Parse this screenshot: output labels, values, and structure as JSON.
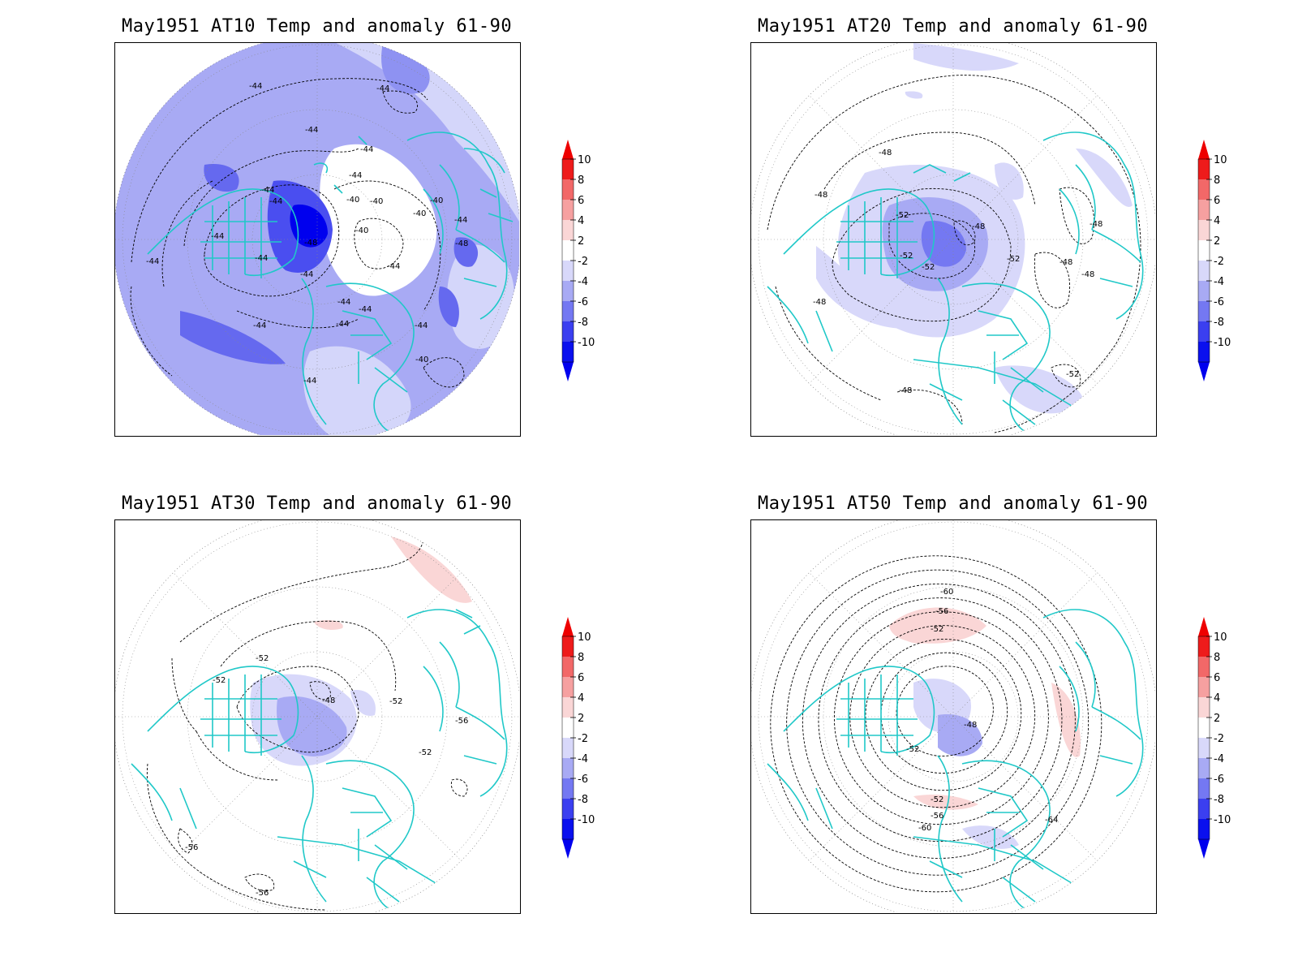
{
  "panels": [
    {
      "title": "May1951 AT10 Temp and anomaly 61-90",
      "background_color": "#a8aaf4",
      "contour_labels": [
        "-44",
        "-44",
        "-44",
        "-44",
        "-44",
        "-44",
        "-44",
        "-48",
        "-44",
        "-44",
        "-44",
        "-40",
        "-40",
        "-40",
        "-40",
        "-40",
        "-44",
        "-48",
        "-44",
        "-44",
        "-44",
        "-44",
        "-44",
        "-44",
        "-40",
        "-44",
        "-44"
      ],
      "anomaly_blobs": [
        {
          "name": "deep-anomaly-greenland",
          "color": "#0000ee"
        },
        {
          "name": "strong-anomaly",
          "color": "#4a4ef0"
        },
        {
          "name": "weak-anomaly",
          "color": "#d4d6fa"
        }
      ]
    },
    {
      "title": "May1951 AT20 Temp and anomaly 61-90",
      "background_color": "#ffffff",
      "contour_labels": [
        "-48",
        "-48",
        "-52",
        "-48",
        "-52",
        "-52",
        "-52",
        "-48",
        "-48",
        "-48",
        "-48",
        "-48",
        "-52"
      ]
    },
    {
      "title": "May1951 AT30 Temp and anomaly 61-90",
      "background_color": "#ffffff",
      "contour_labels": [
        "-52",
        "-52",
        "-48",
        "-52",
        "-56",
        "-52",
        "-56",
        "-56"
      ]
    },
    {
      "title": "May1951 AT50 Temp and anomaly 61-90",
      "background_color": "#ffffff",
      "contour_labels": [
        "-60",
        "-56",
        "-52",
        "-48",
        "-52",
        "-52",
        "-56",
        "-60",
        "-64"
      ]
    }
  ],
  "colorbar": {
    "labels": [
      "10",
      "8",
      "6",
      "4",
      "2",
      "-2",
      "-4",
      "-6",
      "-8",
      "-10"
    ],
    "colors": [
      "#ee1b1b",
      "#f26868",
      "#f6a0a0",
      "#fad6d6",
      "#ffffff",
      "#d8d8fa",
      "#a8aaf4",
      "#7478f2",
      "#3b3ff0",
      "#0a10ee"
    ],
    "tip_top_color": "#ee0000",
    "tip_bottom_color": "#0000ee"
  },
  "colors": {
    "coastline": "#20c8c8",
    "contour": "#000000",
    "grid": "#888888"
  }
}
